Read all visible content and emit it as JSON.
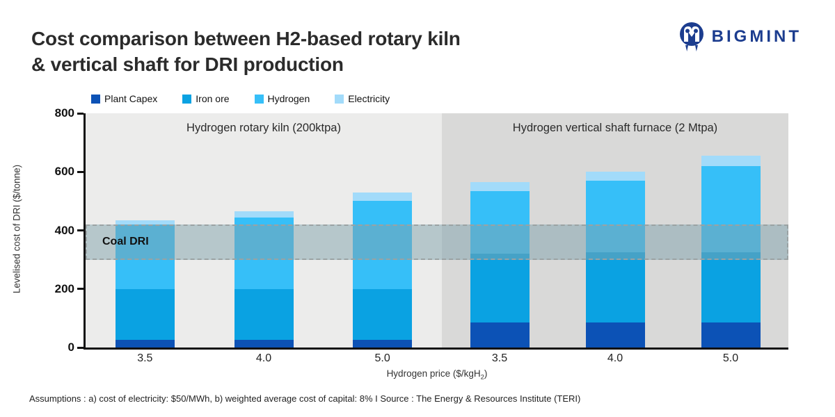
{
  "header": {
    "title_line1": "Cost comparison between H2-based rotary kiln",
    "title_line2": "& vertical shaft for DRI production",
    "brand": "BIGMINT"
  },
  "axis": {
    "y_title": "Levelised cost of DRI ($/tonne)",
    "x_title_pre": "Hydrogen price ($/kgH",
    "x_title_sub": "2",
    "x_title_post": ")"
  },
  "footer": {
    "note": "Assumptions : a) cost of electricity: $50/MWh, b) weighted average cost of capital: 8%  I  Source : The Energy & Resources Institute (TERI)"
  },
  "colors": {
    "plant_capex": "#0c52b6",
    "iron_ore": "#0aa2e2",
    "hydrogen": "#36bff8",
    "electricity": "#a2dbfa",
    "panel_left_bg": "#ececeb",
    "panel_right_bg": "#d9d9d8",
    "coal_band_fill": "rgba(127,162,172,0.5)",
    "coal_band_border": "#9aa2a3",
    "logo_navy": "#1c3d8f",
    "axis": "#111111"
  },
  "chart_data": {
    "type": "bar",
    "stacked": true,
    "title": "Cost comparison between H2-based rotary kiln & vertical shaft for DRI production",
    "xlabel": "Hydrogen price ($/kgH2)",
    "ylabel": "Levelised cost of DRI ($/tonne)",
    "ylim": [
      0,
      800
    ],
    "yticks": [
      0,
      200,
      400,
      600,
      800
    ],
    "grid": false,
    "legend_position": "top",
    "legend": [
      {
        "label": "Plant Capex",
        "color": "#0c52b6"
      },
      {
        "label": "Iron ore",
        "color": "#0aa2e2"
      },
      {
        "label": "Hydrogen",
        "color": "#36bff8"
      },
      {
        "label": "Electricity",
        "color": "#a2dbfa"
      }
    ],
    "panels": [
      {
        "label": "Hydrogen rotary kiln (200ktpa)",
        "categories": [
          "3.5",
          "4.0",
          "5.0"
        ],
        "series": [
          {
            "name": "Plant Capex",
            "values": [
              25,
              25,
              25
            ]
          },
          {
            "name": "Iron ore",
            "values": [
              175,
              175,
              175
            ]
          },
          {
            "name": "Hydrogen",
            "values": [
              220,
              245,
              300
            ]
          },
          {
            "name": "Electricity",
            "values": [
              15,
              20,
              30
            ]
          }
        ],
        "totals": [
          435,
          465,
          530
        ]
      },
      {
        "label": "Hydrogen vertical shaft furnace (2 Mtpa)",
        "categories": [
          "3.5",
          "4.0",
          "5.0"
        ],
        "series": [
          {
            "name": "Plant Capex",
            "values": [
              85,
              85,
              85
            ]
          },
          {
            "name": "Iron ore",
            "values": [
              235,
              240,
              240
            ]
          },
          {
            "name": "Hydrogen",
            "values": [
              215,
              245,
              295
            ]
          },
          {
            "name": "Electricity",
            "values": [
              30,
              30,
              35
            ]
          }
        ],
        "totals": [
          565,
          600,
          655
        ]
      }
    ],
    "annotation_band": {
      "label": "Coal DRI",
      "from": 300,
      "to": 420
    }
  }
}
